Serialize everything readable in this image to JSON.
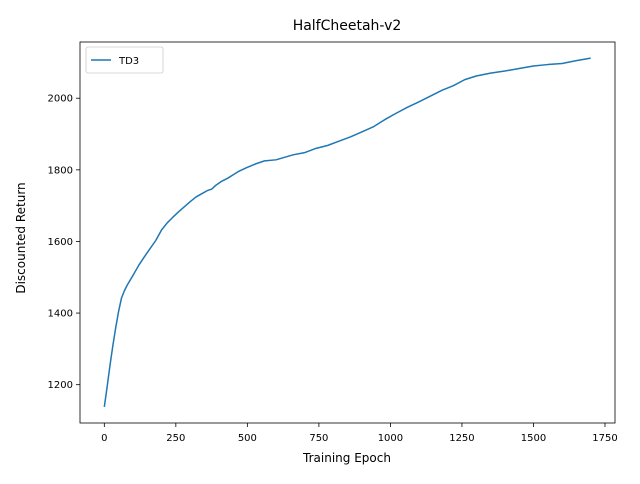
{
  "chart_data": {
    "type": "line",
    "title": "HalfCheetah-v2",
    "xlabel": "Training Epoch",
    "ylabel": "Discounted Return",
    "xlim": [
      -85,
      1785
    ],
    "ylim": [
      1093,
      2157
    ],
    "xticks": [
      0,
      250,
      500,
      750,
      1000,
      1250,
      1500,
      1750
    ],
    "yticks": [
      1200,
      1400,
      1600,
      1800,
      2000
    ],
    "grid": false,
    "legend": "top-left",
    "series": [
      {
        "name": "TD3",
        "color": "#1f77b4",
        "points": [
          [
            0,
            1138
          ],
          [
            10,
            1195
          ],
          [
            20,
            1255
          ],
          [
            30,
            1310
          ],
          [
            40,
            1360
          ],
          [
            50,
            1405
          ],
          [
            60,
            1442
          ],
          [
            70,
            1462
          ],
          [
            80,
            1478
          ],
          [
            100,
            1505
          ],
          [
            120,
            1533
          ],
          [
            140,
            1557
          ],
          [
            160,
            1580
          ],
          [
            180,
            1603
          ],
          [
            200,
            1632
          ],
          [
            220,
            1652
          ],
          [
            240,
            1668
          ],
          [
            260,
            1683
          ],
          [
            280,
            1697
          ],
          [
            300,
            1711
          ],
          [
            320,
            1724
          ],
          [
            340,
            1733
          ],
          [
            360,
            1742
          ],
          [
            375,
            1746
          ],
          [
            390,
            1757
          ],
          [
            410,
            1768
          ],
          [
            430,
            1776
          ],
          [
            450,
            1786
          ],
          [
            470,
            1796
          ],
          [
            500,
            1807
          ],
          [
            530,
            1817
          ],
          [
            560,
            1825
          ],
          [
            600,
            1828
          ],
          [
            630,
            1835
          ],
          [
            660,
            1842
          ],
          [
            700,
            1848
          ],
          [
            740,
            1860
          ],
          [
            780,
            1868
          ],
          [
            820,
            1880
          ],
          [
            860,
            1892
          ],
          [
            900,
            1906
          ],
          [
            940,
            1920
          ],
          [
            980,
            1940
          ],
          [
            1020,
            1958
          ],
          [
            1060,
            1975
          ],
          [
            1100,
            1990
          ],
          [
            1140,
            2006
          ],
          [
            1180,
            2022
          ],
          [
            1220,
            2035
          ],
          [
            1260,
            2052
          ],
          [
            1300,
            2062
          ],
          [
            1350,
            2070
          ],
          [
            1400,
            2076
          ],
          [
            1450,
            2083
          ],
          [
            1500,
            2090
          ],
          [
            1550,
            2094
          ],
          [
            1600,
            2097
          ],
          [
            1650,
            2105
          ],
          [
            1700,
            2112
          ]
        ]
      }
    ]
  }
}
